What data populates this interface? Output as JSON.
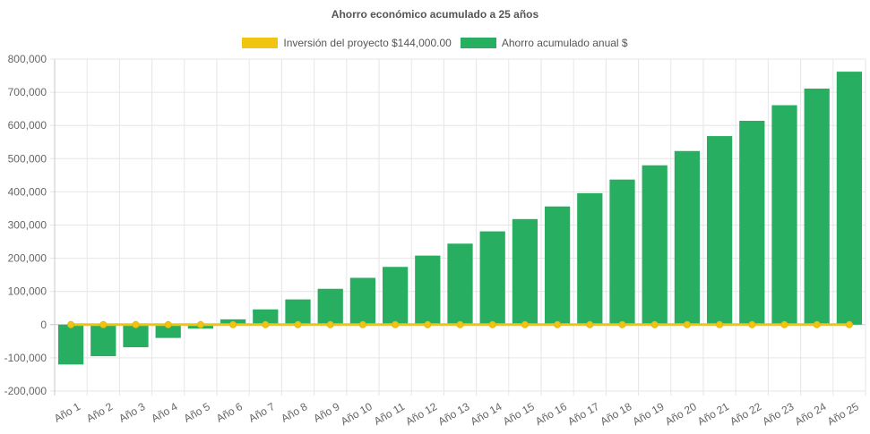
{
  "chart_data": {
    "type": "bar",
    "title": "Ahorro económico acumulado a 25 años",
    "categories": [
      "Año 1",
      "Año 2",
      "Año 3",
      "Año 4",
      "Año 5",
      "Año 6",
      "Año 7",
      "Año 8",
      "Año 9",
      "Año 10",
      "Año 11",
      "Año 12",
      "Año 13",
      "Año 14",
      "Año 15",
      "Año 16",
      "Año 17",
      "Año 18",
      "Año 19",
      "Año 20",
      "Año 21",
      "Año 22",
      "Año 23",
      "Año 24",
      "Año 25"
    ],
    "series": [
      {
        "name": "Inversión del proyecto $144,000.00",
        "type": "line",
        "color": "#f1c40f",
        "values": [
          0,
          0,
          0,
          0,
          0,
          0,
          0,
          0,
          0,
          0,
          0,
          0,
          0,
          0,
          0,
          0,
          0,
          0,
          0,
          0,
          0,
          0,
          0,
          0,
          0
        ]
      },
      {
        "name": "Ahorro acumulado anual $",
        "type": "bar",
        "color": "#27ae60",
        "values": [
          -120000,
          -95000,
          -68000,
          -40000,
          -12000,
          16000,
          46000,
          76000,
          108000,
          141000,
          174000,
          208000,
          244000,
          281000,
          318000,
          356000,
          396000,
          437000,
          480000,
          523000,
          568000,
          614000,
          661000,
          711000,
          762000
        ]
      }
    ],
    "yticks": [
      "800,000",
      "700,000",
      "600,000",
      "500,000",
      "400,000",
      "300,000",
      "200,000",
      "100,000",
      "0",
      "-100,000",
      "-200,000"
    ],
    "ylim": [
      -200000,
      800000
    ],
    "grid": true,
    "legend_position": "top"
  }
}
